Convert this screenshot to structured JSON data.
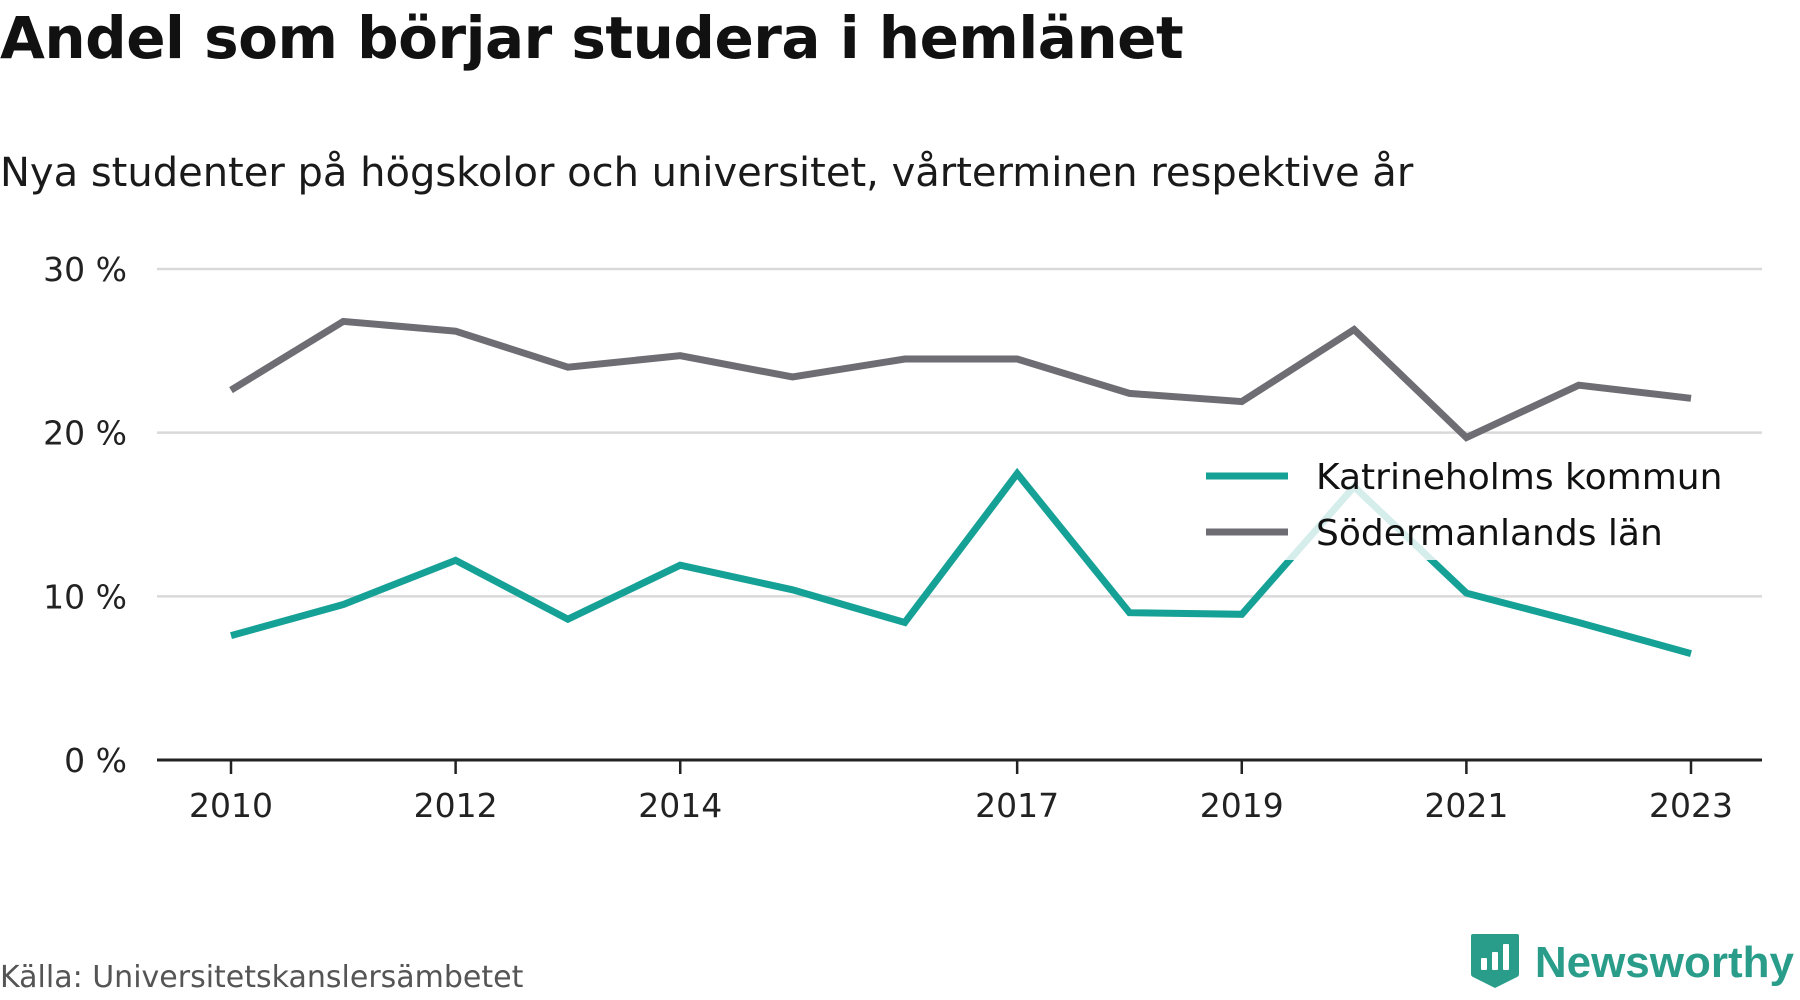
{
  "header": {
    "title": "Andel som börjar studera i hemlänet",
    "subtitle": "Nya studenter på högskolor och universitet, vårterminen respektive år"
  },
  "footer": {
    "source": "Källa: Universitetskanslersämbetet",
    "brand": "Newsworthy"
  },
  "colors": {
    "katrineholm": "#16a196",
    "sodermanland": "#6e6d74",
    "grid": "#d9d9d9",
    "axis": "#222222",
    "brand": "#2a9d8a"
  },
  "chart_data": {
    "type": "line",
    "title": "Andel som börjar studera i hemlänet",
    "subtitle": "Nya studenter på högskolor och universitet, vårterminen respektive år",
    "x": [
      2010,
      2011,
      2012,
      2013,
      2014,
      2015,
      2016,
      2017,
      2018,
      2019,
      2020,
      2021,
      2022,
      2023
    ],
    "x_tick_labels": [
      "2010",
      "2012",
      "2014",
      "2017",
      "2019",
      "2021",
      "2023"
    ],
    "ylim": [
      0,
      30
    ],
    "y_ticks": [
      0,
      10,
      20,
      30
    ],
    "y_tick_labels": [
      "0 %",
      "10 %",
      "20 %",
      "30 %"
    ],
    "grid": true,
    "legend_position": "right",
    "series": [
      {
        "name": "Katrineholms kommun",
        "color_key": "katrineholm",
        "values": [
          7.6,
          9.5,
          12.2,
          8.6,
          11.9,
          10.4,
          8.4,
          17.5,
          9.0,
          8.9,
          16.7,
          10.2,
          8.4,
          6.5
        ]
      },
      {
        "name": "Södermanlands län",
        "color_key": "sodermanland",
        "values": [
          22.6,
          26.8,
          26.2,
          24.0,
          24.7,
          23.4,
          24.5,
          24.5,
          22.4,
          21.9,
          26.3,
          19.7,
          22.9,
          22.1
        ]
      }
    ]
  }
}
